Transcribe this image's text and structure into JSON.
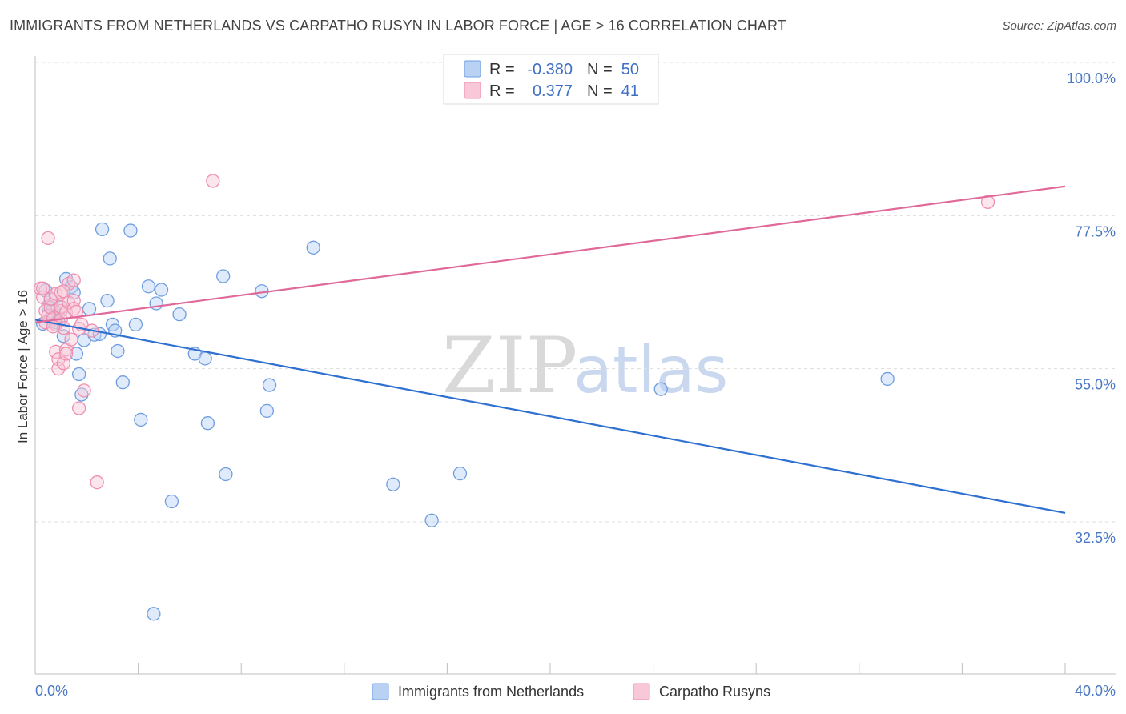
{
  "header": {
    "title": "IMMIGRANTS FROM NETHERLANDS VS CARPATHO RUSYN IN LABOR FORCE | AGE > 16 CORRELATION CHART",
    "source": "Source: ZipAtlas.com"
  },
  "watermark": {
    "zip": "ZIP",
    "atlas": "atlas"
  },
  "legend": {
    "rows": [
      {
        "r_label": "R =",
        "r_value": "-0.380",
        "n_label": "N =",
        "n_value": "50",
        "color": "#6f9ee0",
        "fill": "#b9d1f3"
      },
      {
        "r_label": "R =",
        "r_value": "0.377",
        "n_label": "N =",
        "n_value": "41",
        "color": "#ee8fb0",
        "fill": "#f8c8d8"
      }
    ]
  },
  "chart_data": {
    "type": "scatter",
    "title": "IMMIGRANTS FROM NETHERLANDS VS CARPATHO RUSYN IN LABOR FORCE | AGE > 16 CORRELATION CHART",
    "xlabel": "",
    "ylabel": "In Labor Force | Age > 16",
    "xlim": [
      0,
      40
    ],
    "ylim": [
      10,
      102
    ],
    "x_tick_labels": {
      "left": "0.0%",
      "right": "40.0%"
    },
    "y_ticks": [
      {
        "value": 100.0,
        "label": "100.0%"
      },
      {
        "value": 77.5,
        "label": "77.5%"
      },
      {
        "value": 55.0,
        "label": "55.0%"
      },
      {
        "value": 32.5,
        "label": "32.5%"
      }
    ],
    "series": [
      {
        "name": "Immigrants from Netherlands",
        "color": "#6f9ee0",
        "fill": "#b9d1f3",
        "line_color": "#2f6fd0",
        "trend": {
          "x": [
            0,
            40
          ],
          "y": [
            62.2,
            33.8
          ]
        },
        "points": [
          [
            0.4,
            66.5
          ],
          [
            0.5,
            64.2
          ],
          [
            0.6,
            62.5
          ],
          [
            0.7,
            63.8
          ],
          [
            0.8,
            61.8
          ],
          [
            1.0,
            64.0
          ],
          [
            1.1,
            59.8
          ],
          [
            1.2,
            68.2
          ],
          [
            1.4,
            67.0
          ],
          [
            1.5,
            66.2
          ],
          [
            1.6,
            57.2
          ],
          [
            1.7,
            54.2
          ],
          [
            1.8,
            51.2
          ],
          [
            1.9,
            59.2
          ],
          [
            2.1,
            63.8
          ],
          [
            2.3,
            60.0
          ],
          [
            2.5,
            60.1
          ],
          [
            2.6,
            75.5
          ],
          [
            2.8,
            65.0
          ],
          [
            2.9,
            71.2
          ],
          [
            3.0,
            61.5
          ],
          [
            3.1,
            60.6
          ],
          [
            3.2,
            57.6
          ],
          [
            3.4,
            53.0
          ],
          [
            3.7,
            75.3
          ],
          [
            3.9,
            61.5
          ],
          [
            4.1,
            47.5
          ],
          [
            4.4,
            67.1
          ],
          [
            4.7,
            64.6
          ],
          [
            4.9,
            66.6
          ],
          [
            5.3,
            35.5
          ],
          [
            5.6,
            63.0
          ],
          [
            6.2,
            57.2
          ],
          [
            6.6,
            56.5
          ],
          [
            6.7,
            47.0
          ],
          [
            7.3,
            68.6
          ],
          [
            7.4,
            39.5
          ],
          [
            8.8,
            66.4
          ],
          [
            9.0,
            48.8
          ],
          [
            9.1,
            52.6
          ],
          [
            10.8,
            72.8
          ],
          [
            13.9,
            38.0
          ],
          [
            15.4,
            32.7
          ],
          [
            16.5,
            39.6
          ],
          [
            24.3,
            52.0
          ],
          [
            33.1,
            53.5
          ],
          [
            4.6,
            19.0
          ],
          [
            0.3,
            61.6
          ],
          [
            0.9,
            62.0
          ],
          [
            0.6,
            65.2
          ]
        ]
      },
      {
        "name": "Carpatho Rusyns",
        "color": "#ee8fb0",
        "fill": "#f8c8d8",
        "line_color": "#e0699a",
        "trend": {
          "x": [
            0,
            40
          ],
          "y": [
            61.8,
            81.8
          ]
        },
        "points": [
          [
            0.2,
            66.8
          ],
          [
            0.3,
            65.5
          ],
          [
            0.4,
            63.5
          ],
          [
            0.4,
            61.8
          ],
          [
            0.5,
            74.2
          ],
          [
            0.5,
            62.8
          ],
          [
            0.6,
            64.0
          ],
          [
            0.6,
            65.3
          ],
          [
            0.7,
            62.4
          ],
          [
            0.8,
            61.5
          ],
          [
            0.8,
            66.0
          ],
          [
            0.8,
            57.5
          ],
          [
            0.9,
            56.4
          ],
          [
            0.9,
            55.0
          ],
          [
            1.0,
            66.2
          ],
          [
            1.0,
            63.5
          ],
          [
            1.0,
            62.2
          ],
          [
            1.0,
            64.1
          ],
          [
            1.1,
            61.0
          ],
          [
            1.1,
            55.8
          ],
          [
            1.2,
            57.8
          ],
          [
            1.2,
            57.2
          ],
          [
            1.2,
            63.3
          ],
          [
            1.3,
            67.5
          ],
          [
            1.3,
            64.7
          ],
          [
            1.4,
            59.3
          ],
          [
            1.5,
            68.0
          ],
          [
            1.5,
            65.0
          ],
          [
            1.5,
            63.8
          ],
          [
            1.6,
            63.4
          ],
          [
            1.7,
            60.9
          ],
          [
            1.7,
            49.2
          ],
          [
            1.8,
            61.5
          ],
          [
            1.9,
            51.8
          ],
          [
            2.2,
            60.6
          ],
          [
            2.4,
            38.3
          ],
          [
            6.9,
            82.6
          ],
          [
            37.0,
            79.5
          ],
          [
            0.3,
            66.8
          ],
          [
            0.7,
            61.2
          ],
          [
            1.1,
            66.4
          ]
        ]
      }
    ],
    "bottom_legend": [
      "Immigrants from Netherlands",
      "Carpatho Rusyns"
    ]
  }
}
